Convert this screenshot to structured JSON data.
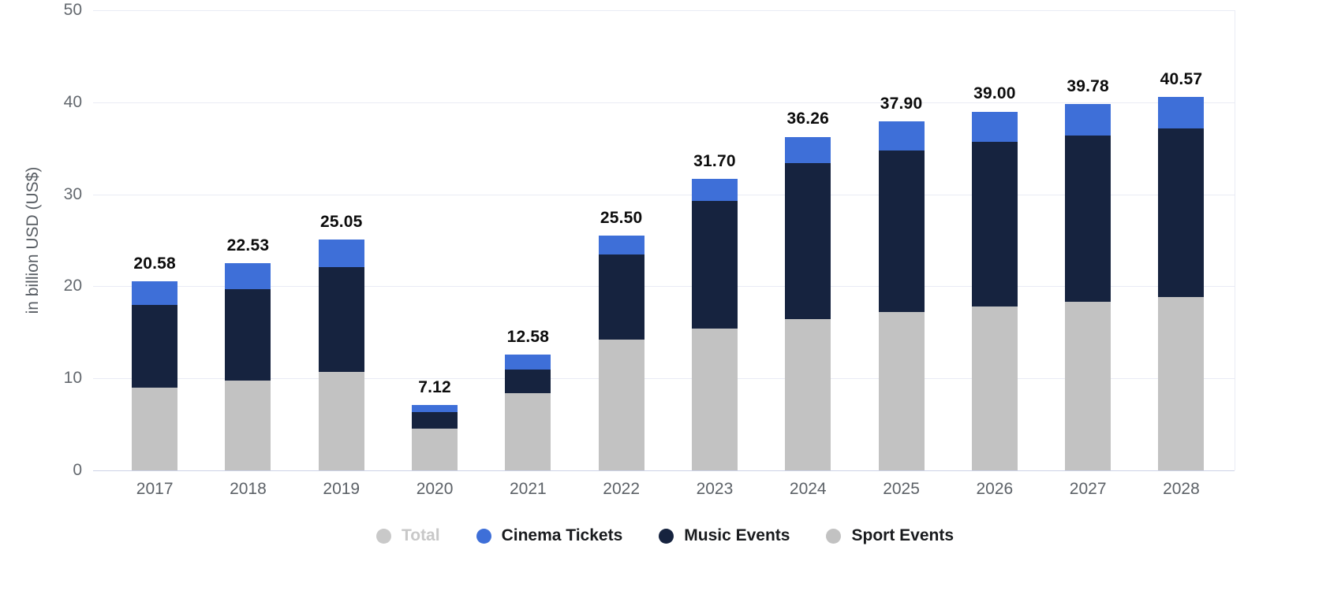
{
  "chart_data": {
    "type": "bar",
    "stacked": true,
    "title": "",
    "xlabel": "",
    "ylabel": "in billion USD (US$)",
    "ylim": [
      0,
      50
    ],
    "yticks": [
      0,
      10,
      20,
      30,
      40,
      50
    ],
    "grid": true,
    "legend_position": "bottom",
    "categories": [
      "2017",
      "2018",
      "2019",
      "2020",
      "2021",
      "2022",
      "2023",
      "2024",
      "2025",
      "2026",
      "2027",
      "2028"
    ],
    "totals": [
      20.58,
      22.53,
      25.05,
      7.12,
      12.58,
      25.5,
      31.7,
      36.26,
      37.9,
      39.0,
      39.78,
      40.57
    ],
    "total_labels": [
      "20.58",
      "22.53",
      "25.05",
      "7.12",
      "12.58",
      "25.50",
      "31.70",
      "36.26",
      "37.90",
      "39.00",
      "39.78",
      "40.57"
    ],
    "series": [
      {
        "name": "Sport Events",
        "color": "#c2c2c2",
        "values": [
          9.0,
          9.8,
          10.7,
          4.5,
          8.4,
          14.2,
          15.4,
          16.4,
          17.2,
          17.8,
          18.3,
          18.8
        ]
      },
      {
        "name": "Music Events",
        "color": "#16233f",
        "values": [
          9.0,
          9.9,
          11.4,
          1.8,
          2.6,
          9.3,
          13.9,
          17.0,
          17.6,
          17.9,
          18.1,
          18.4
        ]
      },
      {
        "name": "Cinema Tickets",
        "color": "#3e6fd8",
        "values": [
          2.58,
          2.83,
          2.95,
          0.82,
          1.58,
          2.0,
          2.4,
          2.86,
          3.1,
          3.3,
          3.38,
          3.37
        ]
      }
    ],
    "legend": [
      {
        "label": "Total",
        "color": "#c9c9c9",
        "active": false
      },
      {
        "label": "Cinema Tickets",
        "color": "#3e6fd8",
        "active": true
      },
      {
        "label": "Music Events",
        "color": "#16233f",
        "active": true
      },
      {
        "label": "Sport Events",
        "color": "#c2c2c2",
        "active": true
      }
    ]
  }
}
